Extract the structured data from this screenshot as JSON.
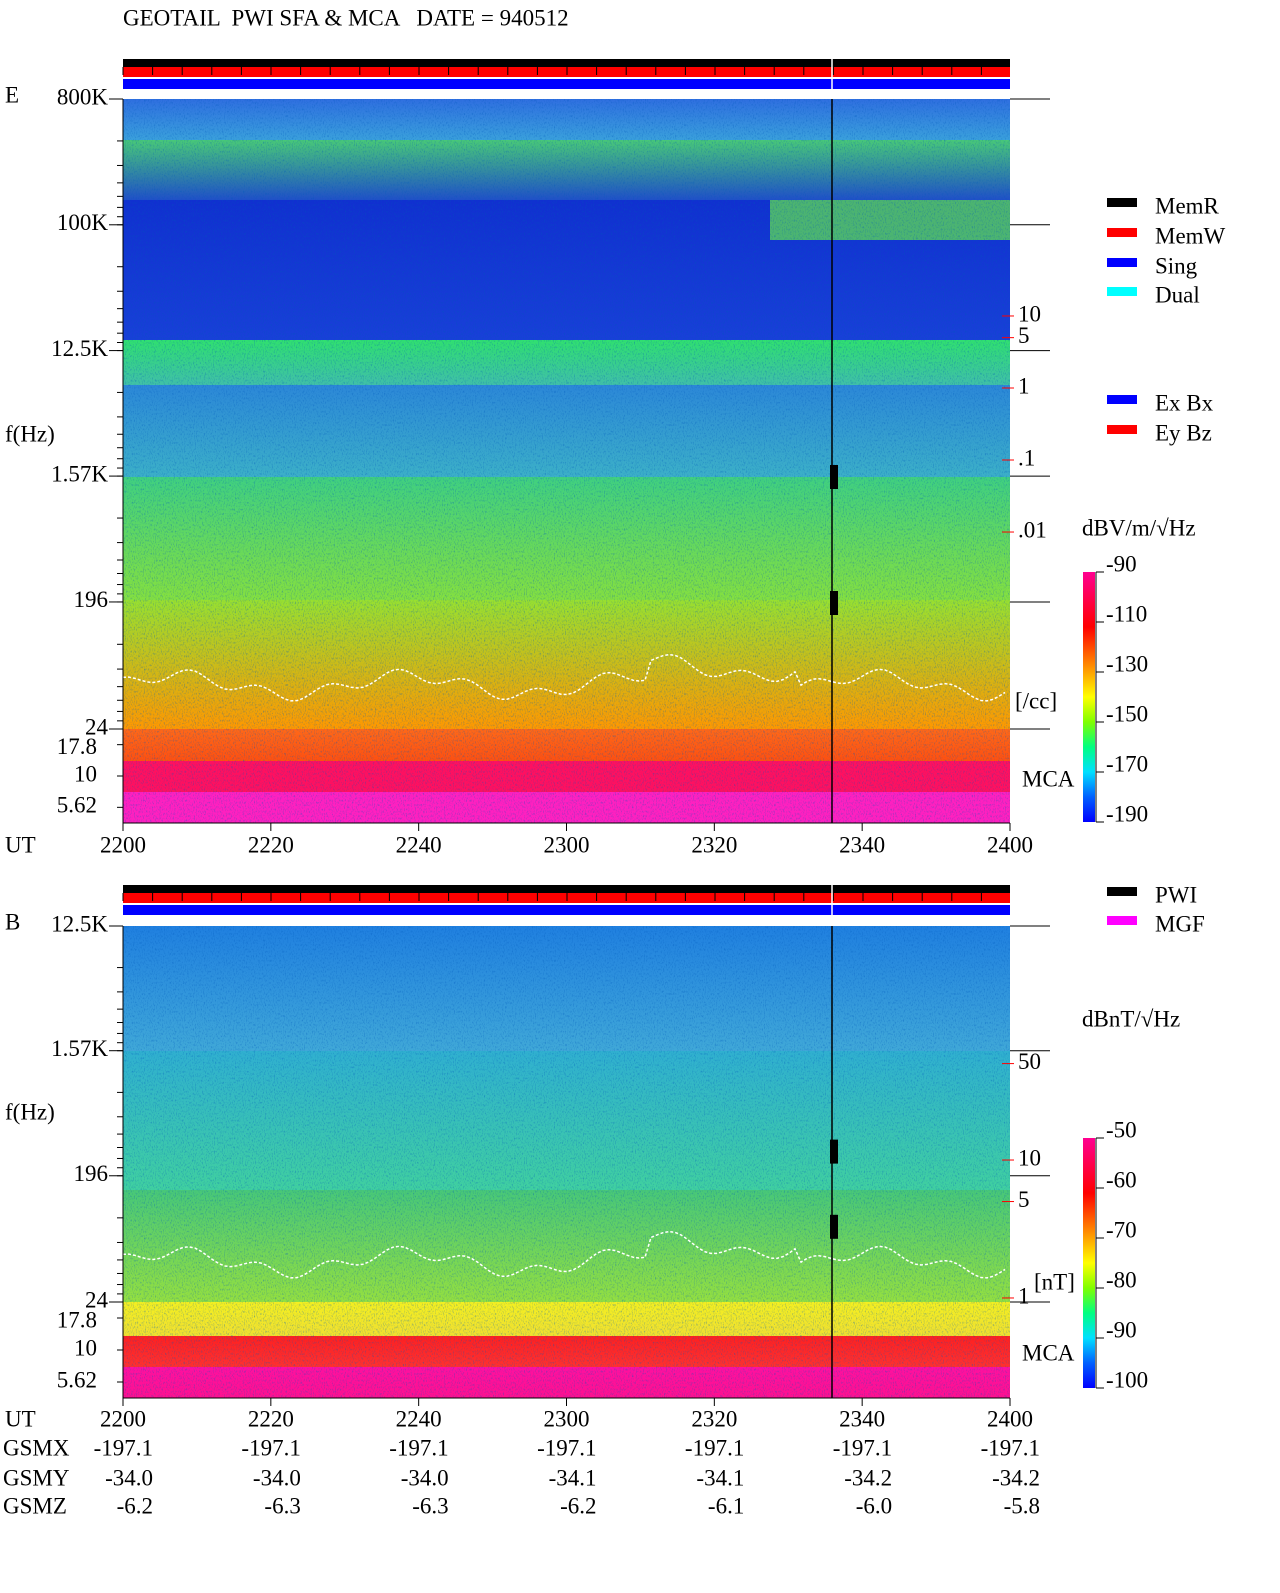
{
  "chart_data": [
    {
      "type": "spectrogram",
      "title": "GEOTAIL  PWI SFA & MCA   DATE = 940512",
      "panel_label": "E",
      "y_label": "f(Hz)",
      "log_scale": true,
      "ylim": [
        24,
        800000
      ],
      "yticks": [
        {
          "value": 800000,
          "label": "800K"
        },
        {
          "value": 100000,
          "label": "100K"
        },
        {
          "value": 12500,
          "label": "12.5K"
        },
        {
          "value": 1570,
          "label": "1.57K"
        },
        196,
        24
      ],
      "mca_label": "MCA",
      "mca_channels": [
        17.8,
        10,
        5.62
      ],
      "x_label": "UT",
      "x_tick_labels": [
        "2200",
        "2220",
        "2240",
        "2300",
        "2320",
        "2340",
        "2400"
      ],
      "y2_label": "[/cc]",
      "y2_color": "#ff0000",
      "y2lim": [
        1.84e-05,
        10300
      ],
      "y2ticks": [
        10,
        5,
        1,
        {
          "value": 0.1,
          "label": ".1"
        },
        {
          "value": 0.01,
          "label": ".01"
        }
      ],
      "status_legend": [
        {
          "name": "MemR",
          "color": "#000000"
        },
        {
          "name": "MemW",
          "color": "#ff0000"
        },
        {
          "name": "Sing",
          "color": "#0000ff"
        },
        {
          "name": "Dual",
          "color": "#00ffff"
        }
      ],
      "component_legend": [
        {
          "name": "Ex Bx",
          "color": "#0000ff"
        },
        {
          "name": "Ey Bz",
          "color": "#ff0000"
        }
      ],
      "colorbar": {
        "label": "dBV/m/√Hz",
        "lim": [
          -190,
          -90
        ],
        "ticks": [
          -90,
          -110,
          -130,
          -150,
          -170,
          -190
        ]
      }
    },
    {
      "type": "spectrogram",
      "panel_label": "B",
      "y_label": "f(Hz)",
      "log_scale": true,
      "ylim": [
        24,
        12500
      ],
      "yticks": [
        {
          "value": 12500,
          "label": "12.5K"
        },
        {
          "value": 1570,
          "label": "1.57K"
        },
        196,
        24
      ],
      "mca_label": "MCA",
      "mca_channels": [
        17.8,
        10,
        5.62
      ],
      "x_label": "UT",
      "x_tick_labels": [
        "2200",
        "2220",
        "2240",
        "2300",
        "2320",
        "2340",
        "2400"
      ],
      "y2_label": "[nT]",
      "y2_color": "#ff0000",
      "y2lim": [
        0.935,
        497
      ],
      "y2ticks": [
        50,
        10,
        5,
        1
      ],
      "status_legend": [
        {
          "name": "PWI",
          "color": "#000000"
        },
        {
          "name": "MGF",
          "color": "#ff00ff"
        }
      ],
      "colorbar": {
        "label": "dBnT/√Hz",
        "lim": [
          -100,
          -50
        ],
        "ticks": [
          -50,
          -60,
          -70,
          -80,
          -90,
          -100
        ]
      }
    }
  ],
  "orbit_table": {
    "rows": [
      {
        "label": "GSMX",
        "values": [
          "-197.1",
          "-197.1",
          "-197.1",
          "-197.1",
          "-197.1",
          "-197.1",
          "-197.1"
        ]
      },
      {
        "label": "GSMY",
        "values": [
          "-34.0",
          "-34.0",
          "-34.0",
          "-34.1",
          "-34.1",
          "-34.2",
          "-34.2"
        ]
      },
      {
        "label": "GSMZ",
        "values": [
          "-6.2",
          "-6.3",
          "-6.3",
          "-6.2",
          "-6.1",
          "-6.0",
          "-5.8"
        ]
      }
    ]
  }
}
